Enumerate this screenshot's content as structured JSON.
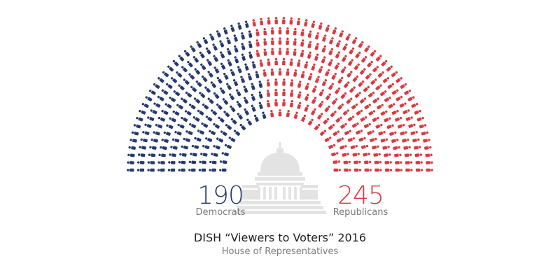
{
  "chart_data": {
    "type": "parliament",
    "title": "DISH “Viewers to Voters” 2016",
    "subtitle": "House of Representatives",
    "series": [
      {
        "name": "Democrats",
        "value": 190,
        "color": "#263a6e"
      },
      {
        "name": "Republicans",
        "value": 245,
        "color": "#d93a40"
      }
    ],
    "total_seats": 435,
    "rows": 10
  },
  "labels": {
    "democrats_count": "190",
    "democrats_name": "Democrats",
    "republicans_count": "245",
    "republicans_name": "Republicans"
  },
  "colors": {
    "capitol": "#e3e3e3"
  },
  "icons": {
    "center": "capitol-building-icon",
    "seat": "person-seat-icon"
  }
}
